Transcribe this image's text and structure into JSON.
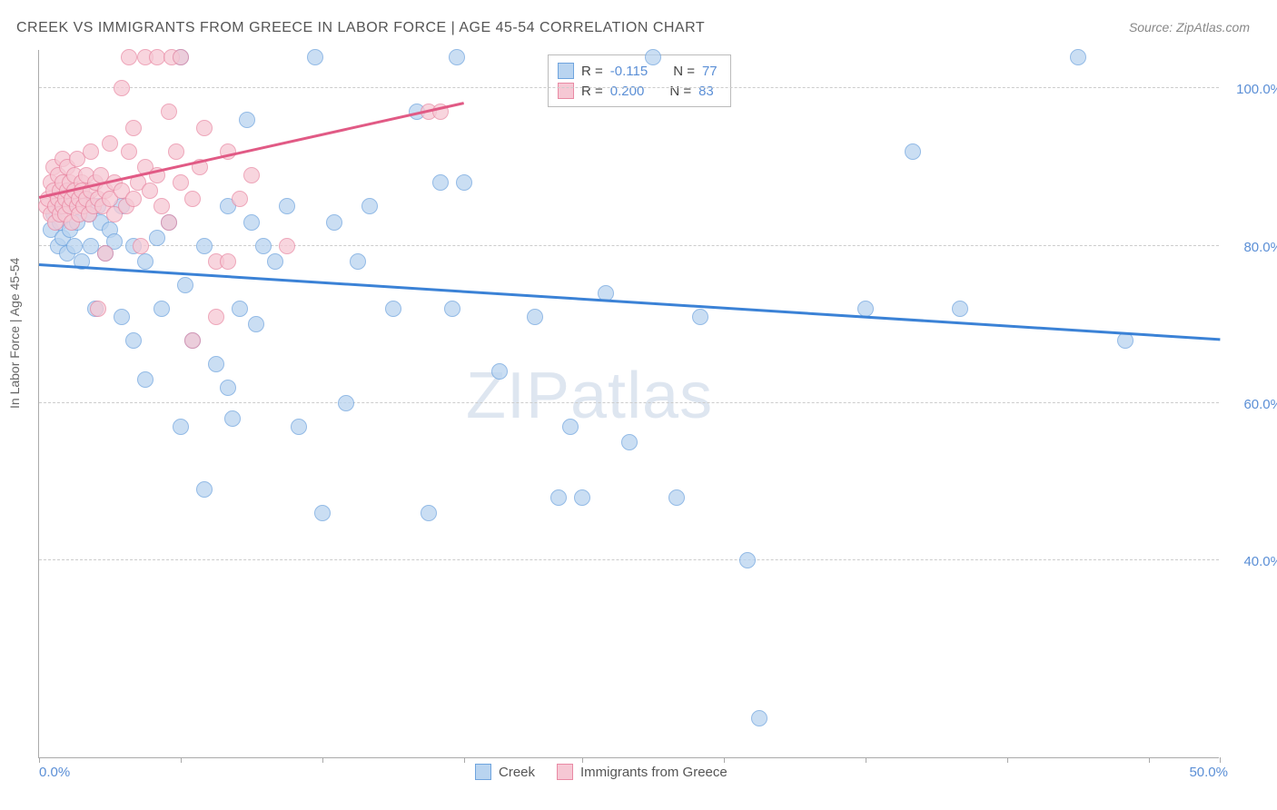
{
  "title": "CREEK VS IMMIGRANTS FROM GREECE IN LABOR FORCE | AGE 45-54 CORRELATION CHART",
  "source": "Source: ZipAtlas.com",
  "ylabel": "In Labor Force | Age 45-54",
  "watermark": "ZIPatlas",
  "chart": {
    "type": "scatter",
    "xlim": [
      0,
      50
    ],
    "ylim": [
      15,
      105
    ],
    "xtick_labels": [
      "0.0%",
      "50.0%"
    ],
    "ytick_labels": [
      "40.0%",
      "60.0%",
      "80.0%",
      "100.0%"
    ],
    "ytick_values": [
      40,
      60,
      80,
      100
    ],
    "xtick_positions_pct": [
      0,
      12,
      24,
      36,
      46,
      58,
      70,
      82,
      94,
      100
    ],
    "background_color": "#ffffff",
    "grid_color": "#cccccc",
    "axis_color": "#aaaaaa",
    "tick_label_color": "#5b8fd6",
    "marker_radius": 9,
    "series": [
      {
        "name": "Creek",
        "color_fill": "#b9d4f0",
        "color_stroke": "#6fa4de",
        "r": "-0.115",
        "n": "77",
        "trend": {
          "x1": 0,
          "y1": 77.5,
          "x2": 50,
          "y2": 68,
          "color": "#3b82d6",
          "width": 2.5
        },
        "points": [
          [
            0.5,
            82
          ],
          [
            0.6,
            84
          ],
          [
            0.8,
            80
          ],
          [
            0.9,
            83
          ],
          [
            1.0,
            81
          ],
          [
            1.1,
            85
          ],
          [
            1.2,
            79
          ],
          [
            1.3,
            82
          ],
          [
            1.5,
            80
          ],
          [
            1.6,
            83
          ],
          [
            1.8,
            78
          ],
          [
            2.0,
            86
          ],
          [
            2.1,
            84
          ],
          [
            2.2,
            80
          ],
          [
            2.4,
            72
          ],
          [
            2.5,
            85
          ],
          [
            2.6,
            83
          ],
          [
            2.8,
            79
          ],
          [
            3.0,
            82
          ],
          [
            3.2,
            80.5
          ],
          [
            3.5,
            71
          ],
          [
            3.5,
            85
          ],
          [
            4.0,
            68
          ],
          [
            4.0,
            80
          ],
          [
            4.5,
            63
          ],
          [
            4.5,
            78
          ],
          [
            5.0,
            81
          ],
          [
            5.2,
            72
          ],
          [
            5.5,
            83
          ],
          [
            6.0,
            104
          ],
          [
            6.0,
            57
          ],
          [
            6.2,
            75
          ],
          [
            6.5,
            68
          ],
          [
            7.0,
            49
          ],
          [
            7.0,
            80
          ],
          [
            7.5,
            65
          ],
          [
            8.0,
            85
          ],
          [
            8.0,
            62
          ],
          [
            8.2,
            58
          ],
          [
            8.5,
            72
          ],
          [
            8.8,
            96
          ],
          [
            9.0,
            83
          ],
          [
            9.2,
            70
          ],
          [
            9.5,
            80
          ],
          [
            10.0,
            78
          ],
          [
            10.5,
            85
          ],
          [
            11.0,
            57
          ],
          [
            11.7,
            104
          ],
          [
            12.0,
            46
          ],
          [
            12.5,
            83
          ],
          [
            13.0,
            60
          ],
          [
            13.5,
            78
          ],
          [
            14.0,
            85
          ],
          [
            15.0,
            72
          ],
          [
            16.0,
            97
          ],
          [
            16.5,
            46
          ],
          [
            17.0,
            88
          ],
          [
            17.5,
            72
          ],
          [
            17.7,
            104
          ],
          [
            18.0,
            88
          ],
          [
            19.5,
            64
          ],
          [
            21.0,
            71
          ],
          [
            22.0,
            48
          ],
          [
            22.5,
            57
          ],
          [
            23.0,
            48
          ],
          [
            24.0,
            74
          ],
          [
            25.0,
            55
          ],
          [
            26.0,
            104
          ],
          [
            27.0,
            48
          ],
          [
            28.0,
            71
          ],
          [
            30.0,
            40
          ],
          [
            30.5,
            20
          ],
          [
            35.0,
            72
          ],
          [
            37.0,
            92
          ],
          [
            39.0,
            72
          ],
          [
            44.0,
            104
          ],
          [
            46.0,
            68
          ]
        ]
      },
      {
        "name": "Immigrants from Greece",
        "color_fill": "#f6c8d4",
        "color_stroke": "#e98aa4",
        "r": "0.200",
        "n": "83",
        "trend": {
          "x1": 0,
          "y1": 86,
          "x2": 18,
          "y2": 98,
          "color": "#e15a85",
          "width": 2.5
        },
        "points": [
          [
            0.3,
            85
          ],
          [
            0.4,
            86
          ],
          [
            0.5,
            88
          ],
          [
            0.5,
            84
          ],
          [
            0.6,
            87
          ],
          [
            0.6,
            90
          ],
          [
            0.7,
            85
          ],
          [
            0.7,
            83
          ],
          [
            0.8,
            86
          ],
          [
            0.8,
            89
          ],
          [
            0.9,
            84
          ],
          [
            0.9,
            87
          ],
          [
            1.0,
            85
          ],
          [
            1.0,
            88
          ],
          [
            1.0,
            91
          ],
          [
            1.1,
            86
          ],
          [
            1.1,
            84
          ],
          [
            1.2,
            87
          ],
          [
            1.2,
            90
          ],
          [
            1.3,
            85
          ],
          [
            1.3,
            88
          ],
          [
            1.4,
            86
          ],
          [
            1.4,
            83
          ],
          [
            1.5,
            87
          ],
          [
            1.5,
            89
          ],
          [
            1.6,
            85
          ],
          [
            1.6,
            91
          ],
          [
            1.7,
            86
          ],
          [
            1.7,
            84
          ],
          [
            1.8,
            88
          ],
          [
            1.8,
            87
          ],
          [
            1.9,
            85
          ],
          [
            2.0,
            89
          ],
          [
            2.0,
            86
          ],
          [
            2.1,
            84
          ],
          [
            2.2,
            87
          ],
          [
            2.2,
            92
          ],
          [
            2.3,
            85
          ],
          [
            2.4,
            88
          ],
          [
            2.5,
            86
          ],
          [
            2.5,
            72
          ],
          [
            2.6,
            89
          ],
          [
            2.7,
            85
          ],
          [
            2.8,
            87
          ],
          [
            2.8,
            79
          ],
          [
            3.0,
            93
          ],
          [
            3.0,
            86
          ],
          [
            3.2,
            88
          ],
          [
            3.2,
            84
          ],
          [
            3.5,
            100
          ],
          [
            3.5,
            87
          ],
          [
            3.7,
            85
          ],
          [
            3.8,
            104
          ],
          [
            3.8,
            92
          ],
          [
            4.0,
            86
          ],
          [
            4.0,
            95
          ],
          [
            4.2,
            88
          ],
          [
            4.3,
            80
          ],
          [
            4.5,
            90
          ],
          [
            4.5,
            104
          ],
          [
            4.7,
            87
          ],
          [
            5.0,
            104
          ],
          [
            5.0,
            89
          ],
          [
            5.2,
            85
          ],
          [
            5.5,
            97
          ],
          [
            5.5,
            83
          ],
          [
            5.6,
            104
          ],
          [
            5.8,
            92
          ],
          [
            6.0,
            88
          ],
          [
            6.0,
            104
          ],
          [
            6.5,
            86
          ],
          [
            6.5,
            68
          ],
          [
            6.8,
            90
          ],
          [
            7.0,
            95
          ],
          [
            7.5,
            78
          ],
          [
            7.5,
            71
          ],
          [
            8.0,
            92
          ],
          [
            8.0,
            78
          ],
          [
            8.5,
            86
          ],
          [
            9.0,
            89
          ],
          [
            10.5,
            80
          ],
          [
            16.5,
            97
          ],
          [
            17.0,
            97
          ]
        ]
      }
    ]
  },
  "r_legend": {
    "rows": [
      {
        "label_r": "R =",
        "label_n": "N ="
      }
    ]
  },
  "bottom_legend": {
    "items": [
      "Creek",
      "Immigrants from Greece"
    ]
  }
}
